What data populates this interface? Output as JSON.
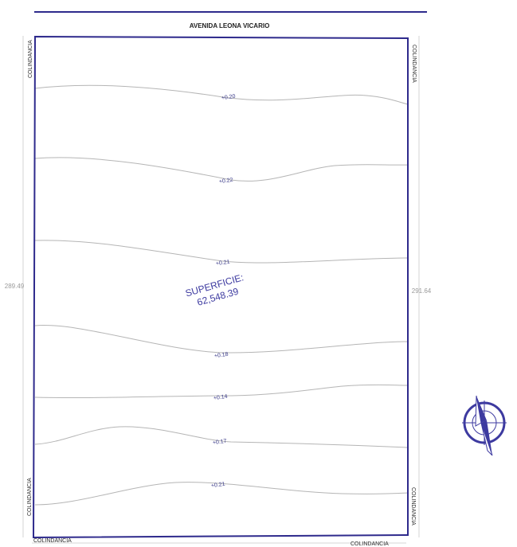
{
  "street": {
    "name": "AVENIDA LEONA VICARIO"
  },
  "boundaries": {
    "top_left": "COLINDANCIA",
    "top_right": "COLINDANCIA",
    "bottom_left_vertical": "COLINDANCIA",
    "bottom_right_vertical": "COLINDANCIA",
    "bottom_left": "COLINDANCIA",
    "bottom_right": "COLINDANCIA"
  },
  "dimensions": {
    "left": "289.49",
    "right": "291.64"
  },
  "contours": [
    {
      "label": "+0.20"
    },
    {
      "label": "+0.22"
    },
    {
      "label": "+0.21"
    },
    {
      "label": "+0.18"
    },
    {
      "label": "+0.14"
    },
    {
      "label": "+0.17"
    },
    {
      "label": "+0.21"
    }
  ],
  "area": {
    "label": "SUPERFICIE:",
    "value": "62,548.39"
  },
  "colors": {
    "boundary": "#2e2a8c",
    "contour": "#b5b5b5",
    "label": "#3a3a8a"
  },
  "north_arrow": {
    "icon": "north-arrow-icon"
  }
}
